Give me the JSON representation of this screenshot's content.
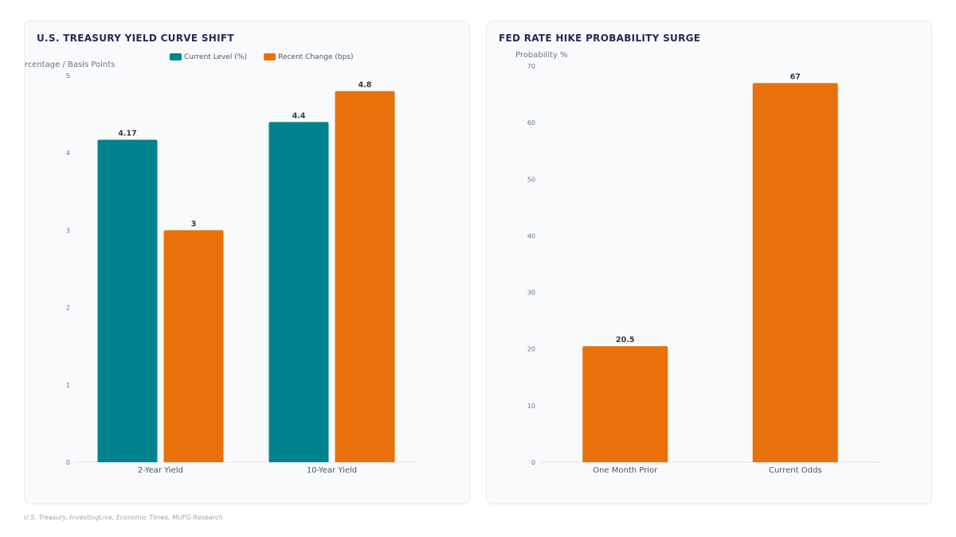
{
  "chart_data": [
    {
      "type": "bar",
      "title": "U.S. TREASURY YIELD CURVE SHIFT",
      "ylabel": "Percentage / Basis Points",
      "categories": [
        "2-Year Yield",
        "10-Year Yield"
      ],
      "series": [
        {
          "name": "Current Level (%)",
          "color": "#00838f",
          "values": [
            4.17,
            4.4
          ]
        },
        {
          "name": "Recent Change (bps)",
          "color": "#e8710a",
          "values": [
            3,
            4.8
          ]
        }
      ],
      "ylim": [
        0,
        5
      ],
      "yticks": [
        0,
        1,
        2,
        3,
        4,
        5
      ],
      "legend": "top-center",
      "grid": false
    },
    {
      "type": "bar",
      "title": "FED RATE HIKE PROBABILITY SURGE",
      "ylabel": "Probability %",
      "categories": [
        "One Month Prior",
        "Current Odds"
      ],
      "series": [
        {
          "name": "",
          "color": "#e8710a",
          "values": [
            20.5,
            67
          ]
        }
      ],
      "ylim": [
        0,
        70
      ],
      "yticks": [
        0,
        10,
        20,
        30,
        40,
        50,
        60,
        70
      ],
      "legend": "none",
      "grid": false
    }
  ],
  "source": "U.S. Treasury, InvestingLive, Economic Times, MUFG Research"
}
